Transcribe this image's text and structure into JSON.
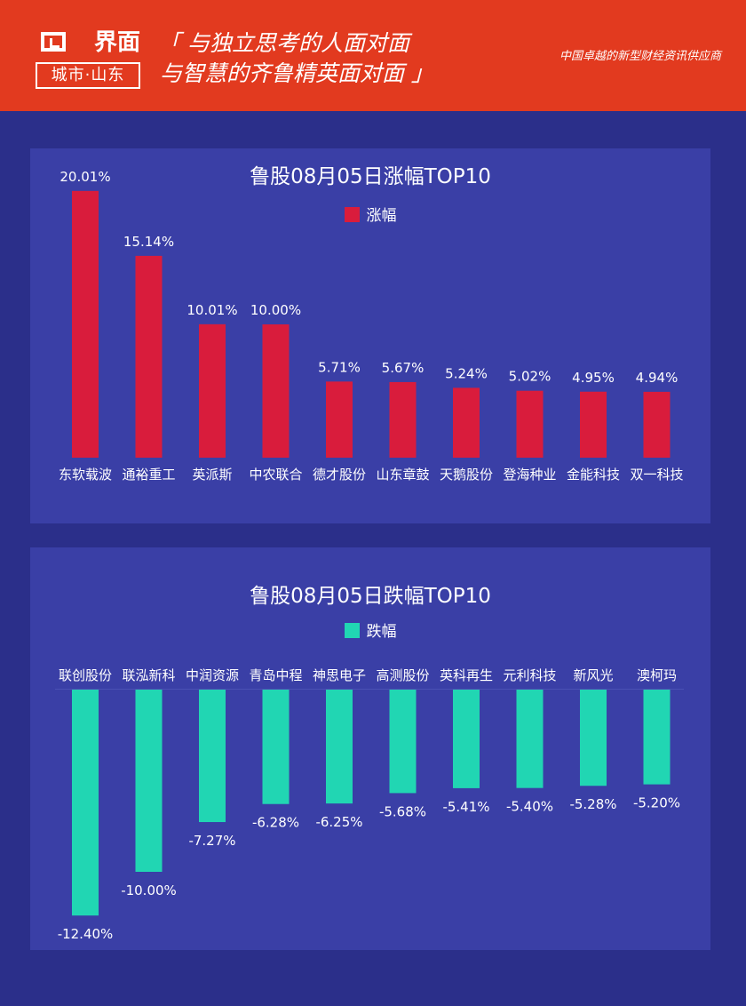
{
  "header": {
    "logo_top": "界面",
    "logo_bottom": "城市·山东",
    "slogan_line1": "「 与独立思考的人面对面",
    "slogan_line2": "与智慧的齐鲁精英面对面 」",
    "tagline": "中国卓越的新型财经资讯供应商",
    "bg_color": "#e23a1f"
  },
  "colors": {
    "background": "#2b2f8a",
    "panel": "#3a3fa6",
    "gain_bar": "#d91c3c",
    "loss_bar": "#21d6b3",
    "text": "#ffffff"
  },
  "chart_data": [
    {
      "type": "bar",
      "title": "鲁股08月05日涨幅TOP10",
      "legend": "涨幅",
      "categories": [
        "东软载波",
        "通裕重工",
        "英派斯",
        "中农联合",
        "德才股份",
        "山东章鼓",
        "天鹅股份",
        "登海种业",
        "金能科技",
        "双一科技"
      ],
      "values": [
        20.01,
        15.14,
        10.01,
        10.0,
        5.71,
        5.67,
        5.24,
        5.02,
        4.95,
        4.94
      ],
      "value_labels": [
        "20.01%",
        "15.14%",
        "10.01%",
        "10.00%",
        "5.71%",
        "5.67%",
        "5.24%",
        "5.02%",
        "4.95%",
        "4.94%"
      ],
      "grid": false,
      "legend_position": "top-center"
    },
    {
      "type": "bar",
      "title": "鲁股08月05日跌幅TOP10",
      "legend": "跌幅",
      "categories": [
        "联创股份",
        "联泓新科",
        "中润资源",
        "青岛中程",
        "神思电子",
        "高测股份",
        "英科再生",
        "元利科技",
        "新风光",
        "澳柯玛"
      ],
      "values": [
        -12.4,
        -10.0,
        -7.27,
        -6.28,
        -6.25,
        -5.68,
        -5.41,
        -5.4,
        -5.28,
        -5.2
      ],
      "value_labels": [
        "-12.40%",
        "-10.00%",
        "-7.27%",
        "-6.28%",
        "-6.25%",
        "-5.68%",
        "-5.41%",
        "-5.40%",
        "-5.28%",
        "-5.20%"
      ],
      "grid": false,
      "legend_position": "top-center"
    }
  ]
}
